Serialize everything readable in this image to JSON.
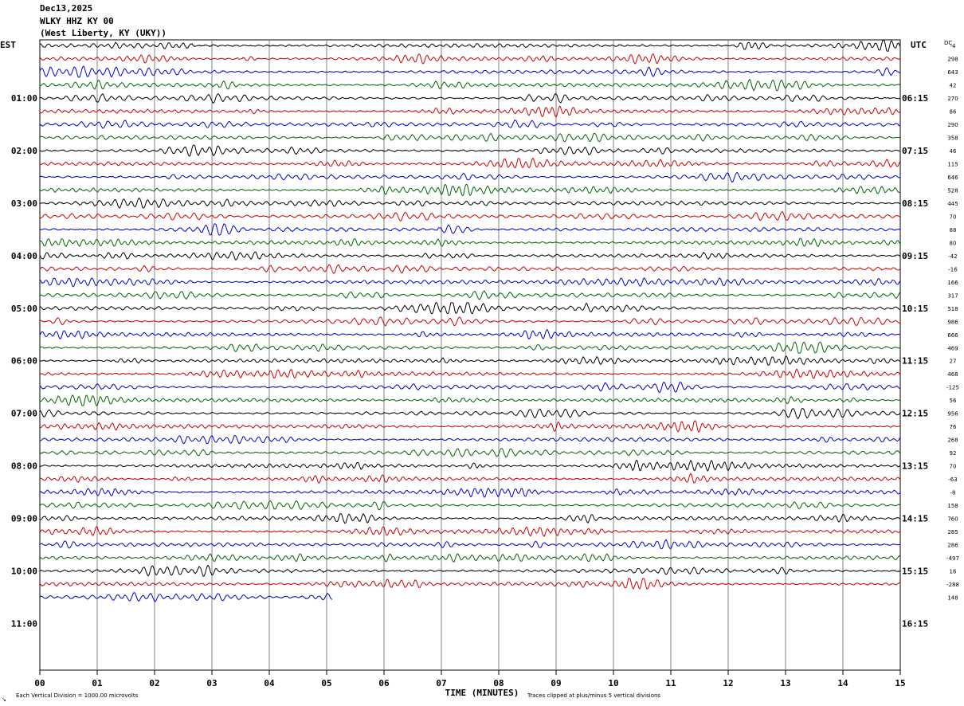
{
  "header": {
    "date": "Dec13,2025",
    "station": "WLKY HHZ KY 00",
    "location": "(West Liberty, KY (UKY))"
  },
  "axes": {
    "left_zone": "EST",
    "right_zone": "UTC",
    "dc_label": "DC",
    "xlabel": "TIME (MINUTES)",
    "footer_left": "Each Vertical Division = 1000.00 microvolts",
    "footer_right": "Traces clipped at plus/minus 5 vertical divisions",
    "corner_mark": "↘"
  },
  "colors": {
    "trace_cycle": [
      "#000000",
      "#cc0000",
      "#0000cc",
      "#006600"
    ],
    "grid": "#808080",
    "frame": "#000000"
  },
  "chart_data": {
    "type": "line",
    "title": "",
    "x_ticks": [
      "00",
      "01",
      "02",
      "03",
      "04",
      "05",
      "06",
      "07",
      "08",
      "09",
      "10",
      "11",
      "12",
      "13",
      "14",
      "15"
    ],
    "xlim": [
      0,
      15
    ],
    "minutes_per_row": 15,
    "rows_total": 48,
    "rows_recorded": 43,
    "last_row_minutes": 5.1,
    "left_hour_labels": [
      "01:00",
      "02:00",
      "03:00",
      "04:00",
      "05:00",
      "06:00",
      "07:00",
      "08:00",
      "09:00",
      "10:00",
      "11:00"
    ],
    "right_hour_labels": [
      "06:15",
      "07:15",
      "08:15",
      "09:15",
      "10:15",
      "11:15",
      "12:15",
      "13:15",
      "14:15",
      "15:15",
      "16:15"
    ],
    "dc_offsets": [
      "-4",
      "298",
      "643",
      "42",
      "270",
      "86",
      "290",
      "358",
      "46",
      "115",
      "646",
      "528",
      "445",
      "70",
      "88",
      "80",
      "-42",
      "-16",
      "166",
      "317",
      "518",
      "986",
      "666",
      "469",
      "27",
      "468",
      "-125",
      "56",
      "956",
      "76",
      "268",
      "92",
      "70",
      "-63",
      "-8",
      "158",
      "760",
      "285",
      "286",
      "-497",
      "16",
      "-288",
      "148"
    ]
  }
}
